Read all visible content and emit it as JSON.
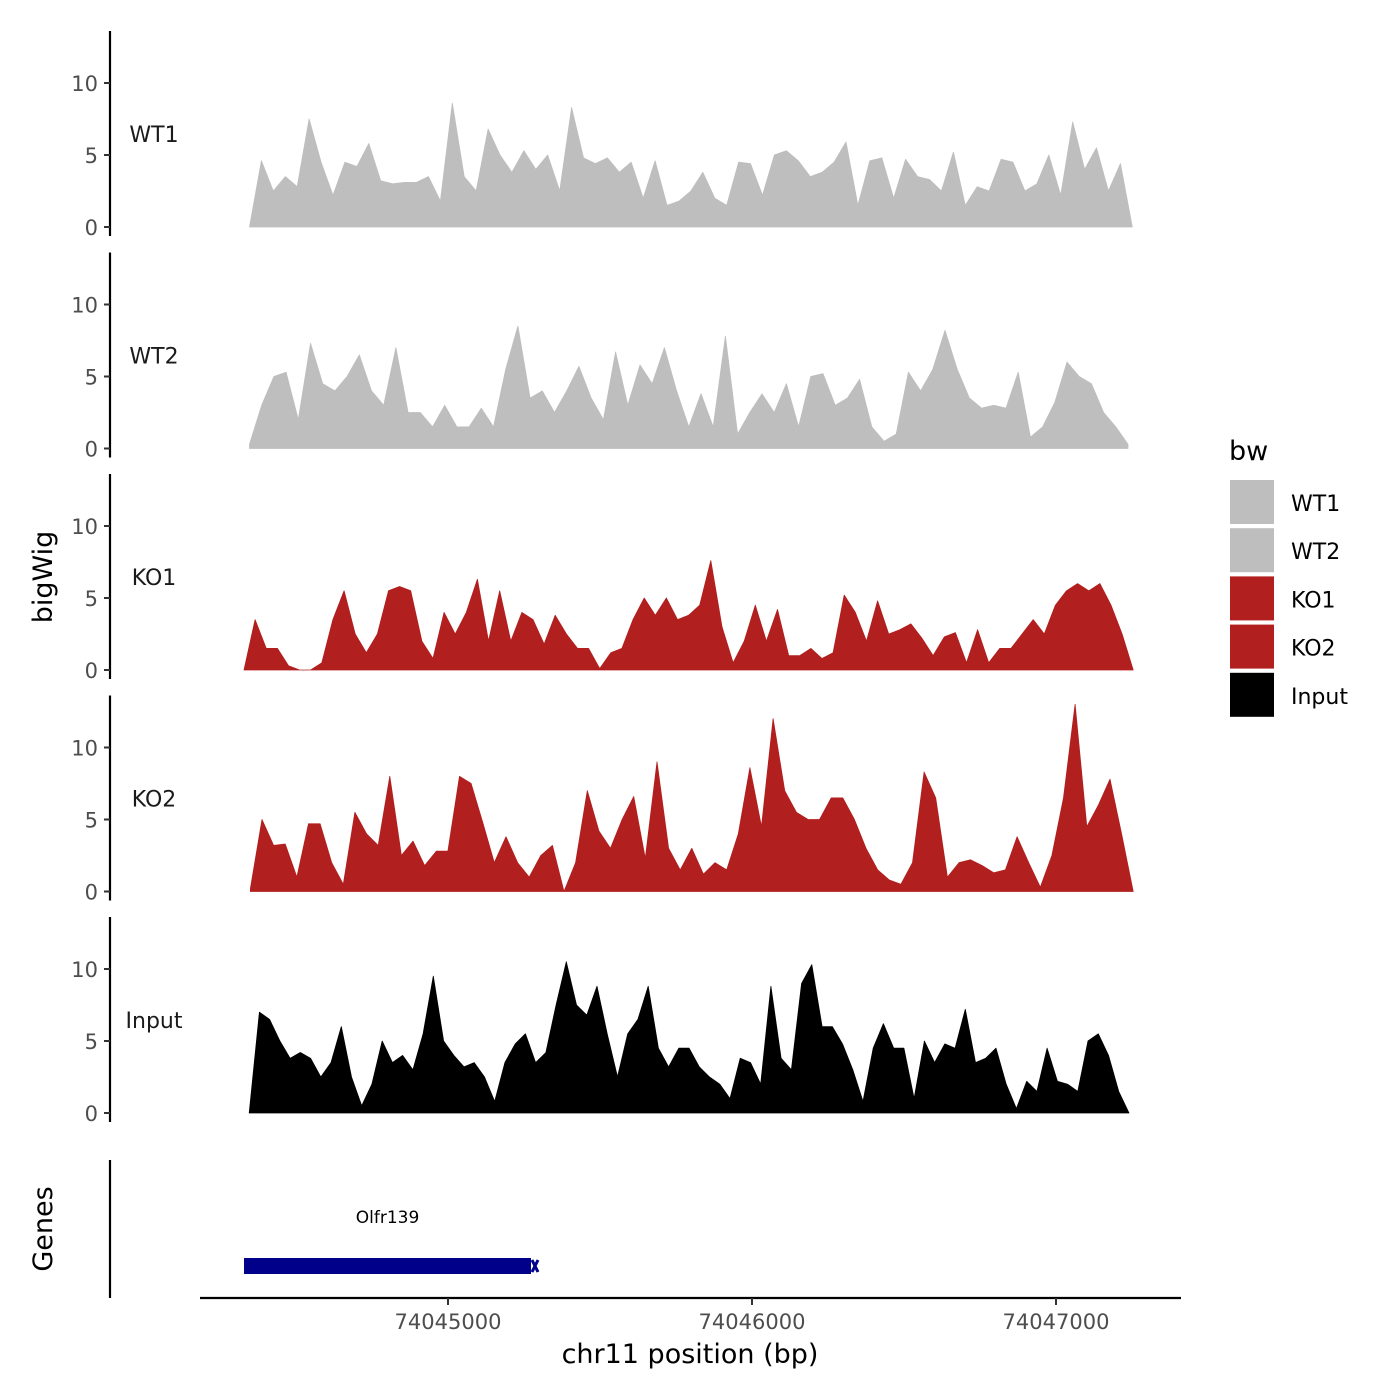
{
  "chart_data": {
    "type": "area",
    "title": "",
    "xlabel": "chr11 position (bp)",
    "ylabel": "bigWig",
    "genes_label": "Genes",
    "ylim": [
      0,
      14
    ],
    "yticks": [
      "0",
      "5",
      "10"
    ],
    "ytick_values": [
      0,
      5,
      10
    ],
    "xlim": [
      74044040,
      74047270
    ],
    "xticks": [
      "74045000",
      "74046000",
      "74047000"
    ],
    "xtick_values": [
      74045000,
      74046000,
      74047000
    ],
    "legend": {
      "title": "bw",
      "placement": "right",
      "entries": [
        {
          "label": "WT1",
          "color": "#BEBEBE"
        },
        {
          "label": "WT2",
          "color": "#BEBEBE"
        },
        {
          "label": "KO1",
          "color": "#B21F1F"
        },
        {
          "label": "KO2",
          "color": "#B21F1F"
        },
        {
          "label": "Input",
          "color": "#000000"
        }
      ]
    },
    "series": [
      {
        "name": "WT1",
        "color": "#BEBEBE",
        "x_start": 74044347,
        "x_end": 74047251,
        "values": [
          0,
          4.6,
          2.5,
          3.5,
          2.8,
          7.5,
          4.5,
          2.2,
          4.5,
          4.2,
          5.8,
          3.2,
          3,
          3.1,
          3.1,
          3.5,
          1.8,
          8.6,
          3.5,
          2.5,
          6.8,
          5,
          3.8,
          5.3,
          4,
          5,
          2.5,
          8.3,
          4.8,
          4.4,
          4.8,
          3.8,
          4.5,
          2,
          4.6,
          1.5,
          1.8,
          2.5,
          3.8,
          2,
          1.5,
          4.5,
          4.4,
          2.2,
          5,
          5.3,
          4.6,
          3.5,
          3.8,
          4.5,
          5.9,
          1.5,
          4.6,
          4.8,
          2,
          4.7,
          3.5,
          3.3,
          2.5,
          5.2,
          1.5,
          2.8,
          2.5,
          4.7,
          4.5,
          2.5,
          3,
          5,
          2.2,
          7.3,
          4,
          5.5,
          2.5,
          4.4,
          0
        ]
      },
      {
        "name": "WT2",
        "color": "#BEBEBE",
        "x_start": 74044347,
        "x_end": 74047237,
        "values": [
          0.3,
          3,
          5,
          5.3,
          2,
          7.3,
          4.5,
          4,
          5,
          6.5,
          4,
          3,
          7,
          2.5,
          2.5,
          1.5,
          3,
          1.5,
          1.5,
          2.8,
          1.5,
          5.5,
          8.5,
          3.5,
          4,
          2.5,
          4,
          5.7,
          3.5,
          2,
          6.7,
          3,
          5.8,
          4.5,
          7,
          4,
          1.5,
          3.8,
          1.5,
          7.8,
          1,
          2.5,
          3.8,
          2.5,
          4.5,
          1.5,
          5,
          5.2,
          3,
          3.5,
          4.8,
          1.5,
          0.5,
          1,
          5.3,
          4,
          5.5,
          8.2,
          5.5,
          3.5,
          2.8,
          3,
          2.8,
          5.3,
          0.8,
          1.5,
          3.2,
          6,
          5,
          4.5,
          2.5,
          1.5,
          0.3
        ]
      },
      {
        "name": "KO1",
        "color": "#B21F1F",
        "x_start": 74044329,
        "x_end": 74047254,
        "values": [
          0,
          3.5,
          1.5,
          1.5,
          0.3,
          0,
          0,
          0.5,
          3.5,
          5.5,
          2.5,
          1.2,
          2.5,
          5.5,
          5.8,
          5.5,
          2,
          0.8,
          4,
          2.5,
          4,
          6.3,
          2,
          5.5,
          2,
          4,
          3.5,
          1.8,
          3.8,
          2.5,
          1.5,
          1.5,
          0.1,
          1.2,
          1.5,
          3.5,
          5,
          3.8,
          5,
          3.5,
          3.8,
          4.5,
          7.6,
          3,
          0.5,
          2,
          4.5,
          2,
          4.2,
          1,
          1,
          1.5,
          0.8,
          1.2,
          5.2,
          4,
          2,
          4.8,
          2.5,
          2.8,
          3.2,
          2.2,
          1,
          2.3,
          2.6,
          0.5,
          2.8,
          0.5,
          1.5,
          1.5,
          2.5,
          3.5,
          2.5,
          4.5,
          5.5,
          6,
          5.5,
          6,
          4.5,
          2.5,
          0
        ]
      },
      {
        "name": "KO2",
        "color": "#B21F1F",
        "x_start": 74044350,
        "x_end": 74047254,
        "values": [
          0.2,
          5,
          3.2,
          3.3,
          1,
          4.7,
          4.7,
          2,
          0.5,
          5.5,
          4,
          3.2,
          8,
          2.5,
          3.5,
          1.8,
          2.8,
          2.8,
          8,
          7.5,
          4.8,
          2,
          3.8,
          2,
          1,
          2.5,
          3.2,
          0,
          2,
          7,
          4.2,
          3,
          5,
          6.6,
          2.3,
          9,
          3,
          1.5,
          3,
          1.2,
          2,
          1.5,
          4,
          8.6,
          4.5,
          12,
          7,
          5.5,
          5,
          5,
          6.5,
          6.5,
          5,
          3,
          1.5,
          0.8,
          0.5,
          2,
          8.3,
          6.5,
          1,
          2,
          2.2,
          1.8,
          1.3,
          1.5,
          3.8,
          2,
          0.3,
          2.5,
          6.5,
          13,
          4.5,
          6,
          7.8,
          4,
          0
        ]
      },
      {
        "name": "Input",
        "color": "#000000",
        "x_start": 74044346,
        "x_end": 74047240,
        "values": [
          0,
          7,
          6.5,
          5,
          3.8,
          4.2,
          3.8,
          2.5,
          3.5,
          6,
          2.5,
          0.5,
          2,
          5,
          3.5,
          4,
          3,
          5.5,
          9.5,
          5,
          4,
          3.2,
          3.5,
          2.5,
          0.8,
          3.5,
          4.8,
          5.5,
          3.5,
          4.2,
          7.5,
          10.5,
          7.5,
          6.8,
          8.8,
          5.5,
          2.5,
          5.5,
          6.5,
          8.8,
          4.5,
          3.2,
          4.5,
          4.5,
          3.2,
          2.5,
          2,
          1,
          3.8,
          3.5,
          2,
          8.8,
          3.8,
          3,
          9,
          10.3,
          6,
          6,
          4.8,
          3,
          0.8,
          4.5,
          6.2,
          4.5,
          4.5,
          1,
          5,
          3.5,
          4.8,
          4.5,
          7.2,
          3.5,
          3.8,
          4.5,
          2,
          0.3,
          2.2,
          1.5,
          4.5,
          2.2,
          2,
          1.5,
          5,
          5.5,
          4,
          1.5,
          0
        ]
      }
    ],
    "genes": [
      {
        "name": "Olfr139",
        "start": 74044329,
        "end": 74045273,
        "color": "#00008B"
      }
    ]
  }
}
